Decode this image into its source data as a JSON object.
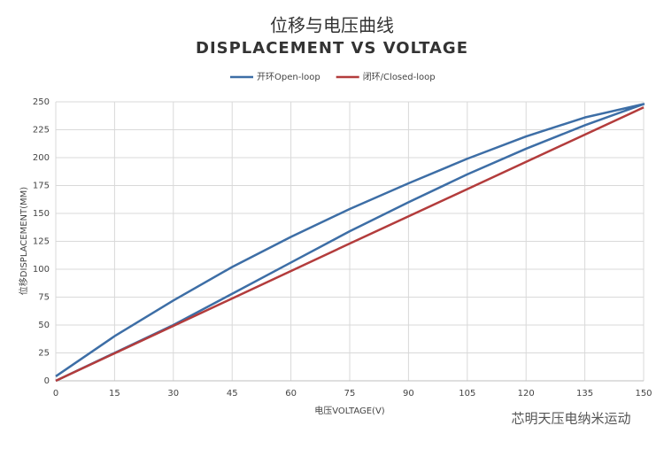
{
  "chart_data": {
    "type": "line",
    "title": "位移与电压曲线",
    "subtitle": "DISPLACEMENT VS VOLTAGE",
    "x_label": "电压VOLTAGE(V)",
    "y_label": "位移DISPLACEMENT(MM)",
    "watermark": "芯明天压电纳米运动",
    "series": [
      {
        "name": "开环Open-loop",
        "color": "#3d6ea6",
        "x": [
          0,
          15,
          30,
          45,
          60,
          75,
          90,
          105,
          120,
          135,
          150,
          135,
          120,
          105,
          90,
          75,
          60,
          45,
          30,
          15,
          0
        ],
        "values": [
          0,
          25,
          50,
          78,
          106,
          134,
          160,
          185,
          208,
          229,
          248,
          236,
          219,
          199,
          177,
          154,
          129,
          102,
          72,
          40,
          4
        ]
      },
      {
        "name": "闭环/Closed-loop",
        "color": "#b33c3c",
        "x": [
          0,
          75,
          150
        ],
        "values": [
          0,
          123,
          245
        ]
      }
    ],
    "xlim": [
      0,
      150
    ],
    "xticks": [
      0,
      15,
      30,
      45,
      60,
      75,
      90,
      105,
      120,
      135,
      150
    ],
    "ylim": [
      0,
      250
    ],
    "yticks": [
      0,
      25,
      50,
      75,
      100,
      125,
      150,
      175,
      200,
      225,
      250
    ],
    "grid": true
  }
}
